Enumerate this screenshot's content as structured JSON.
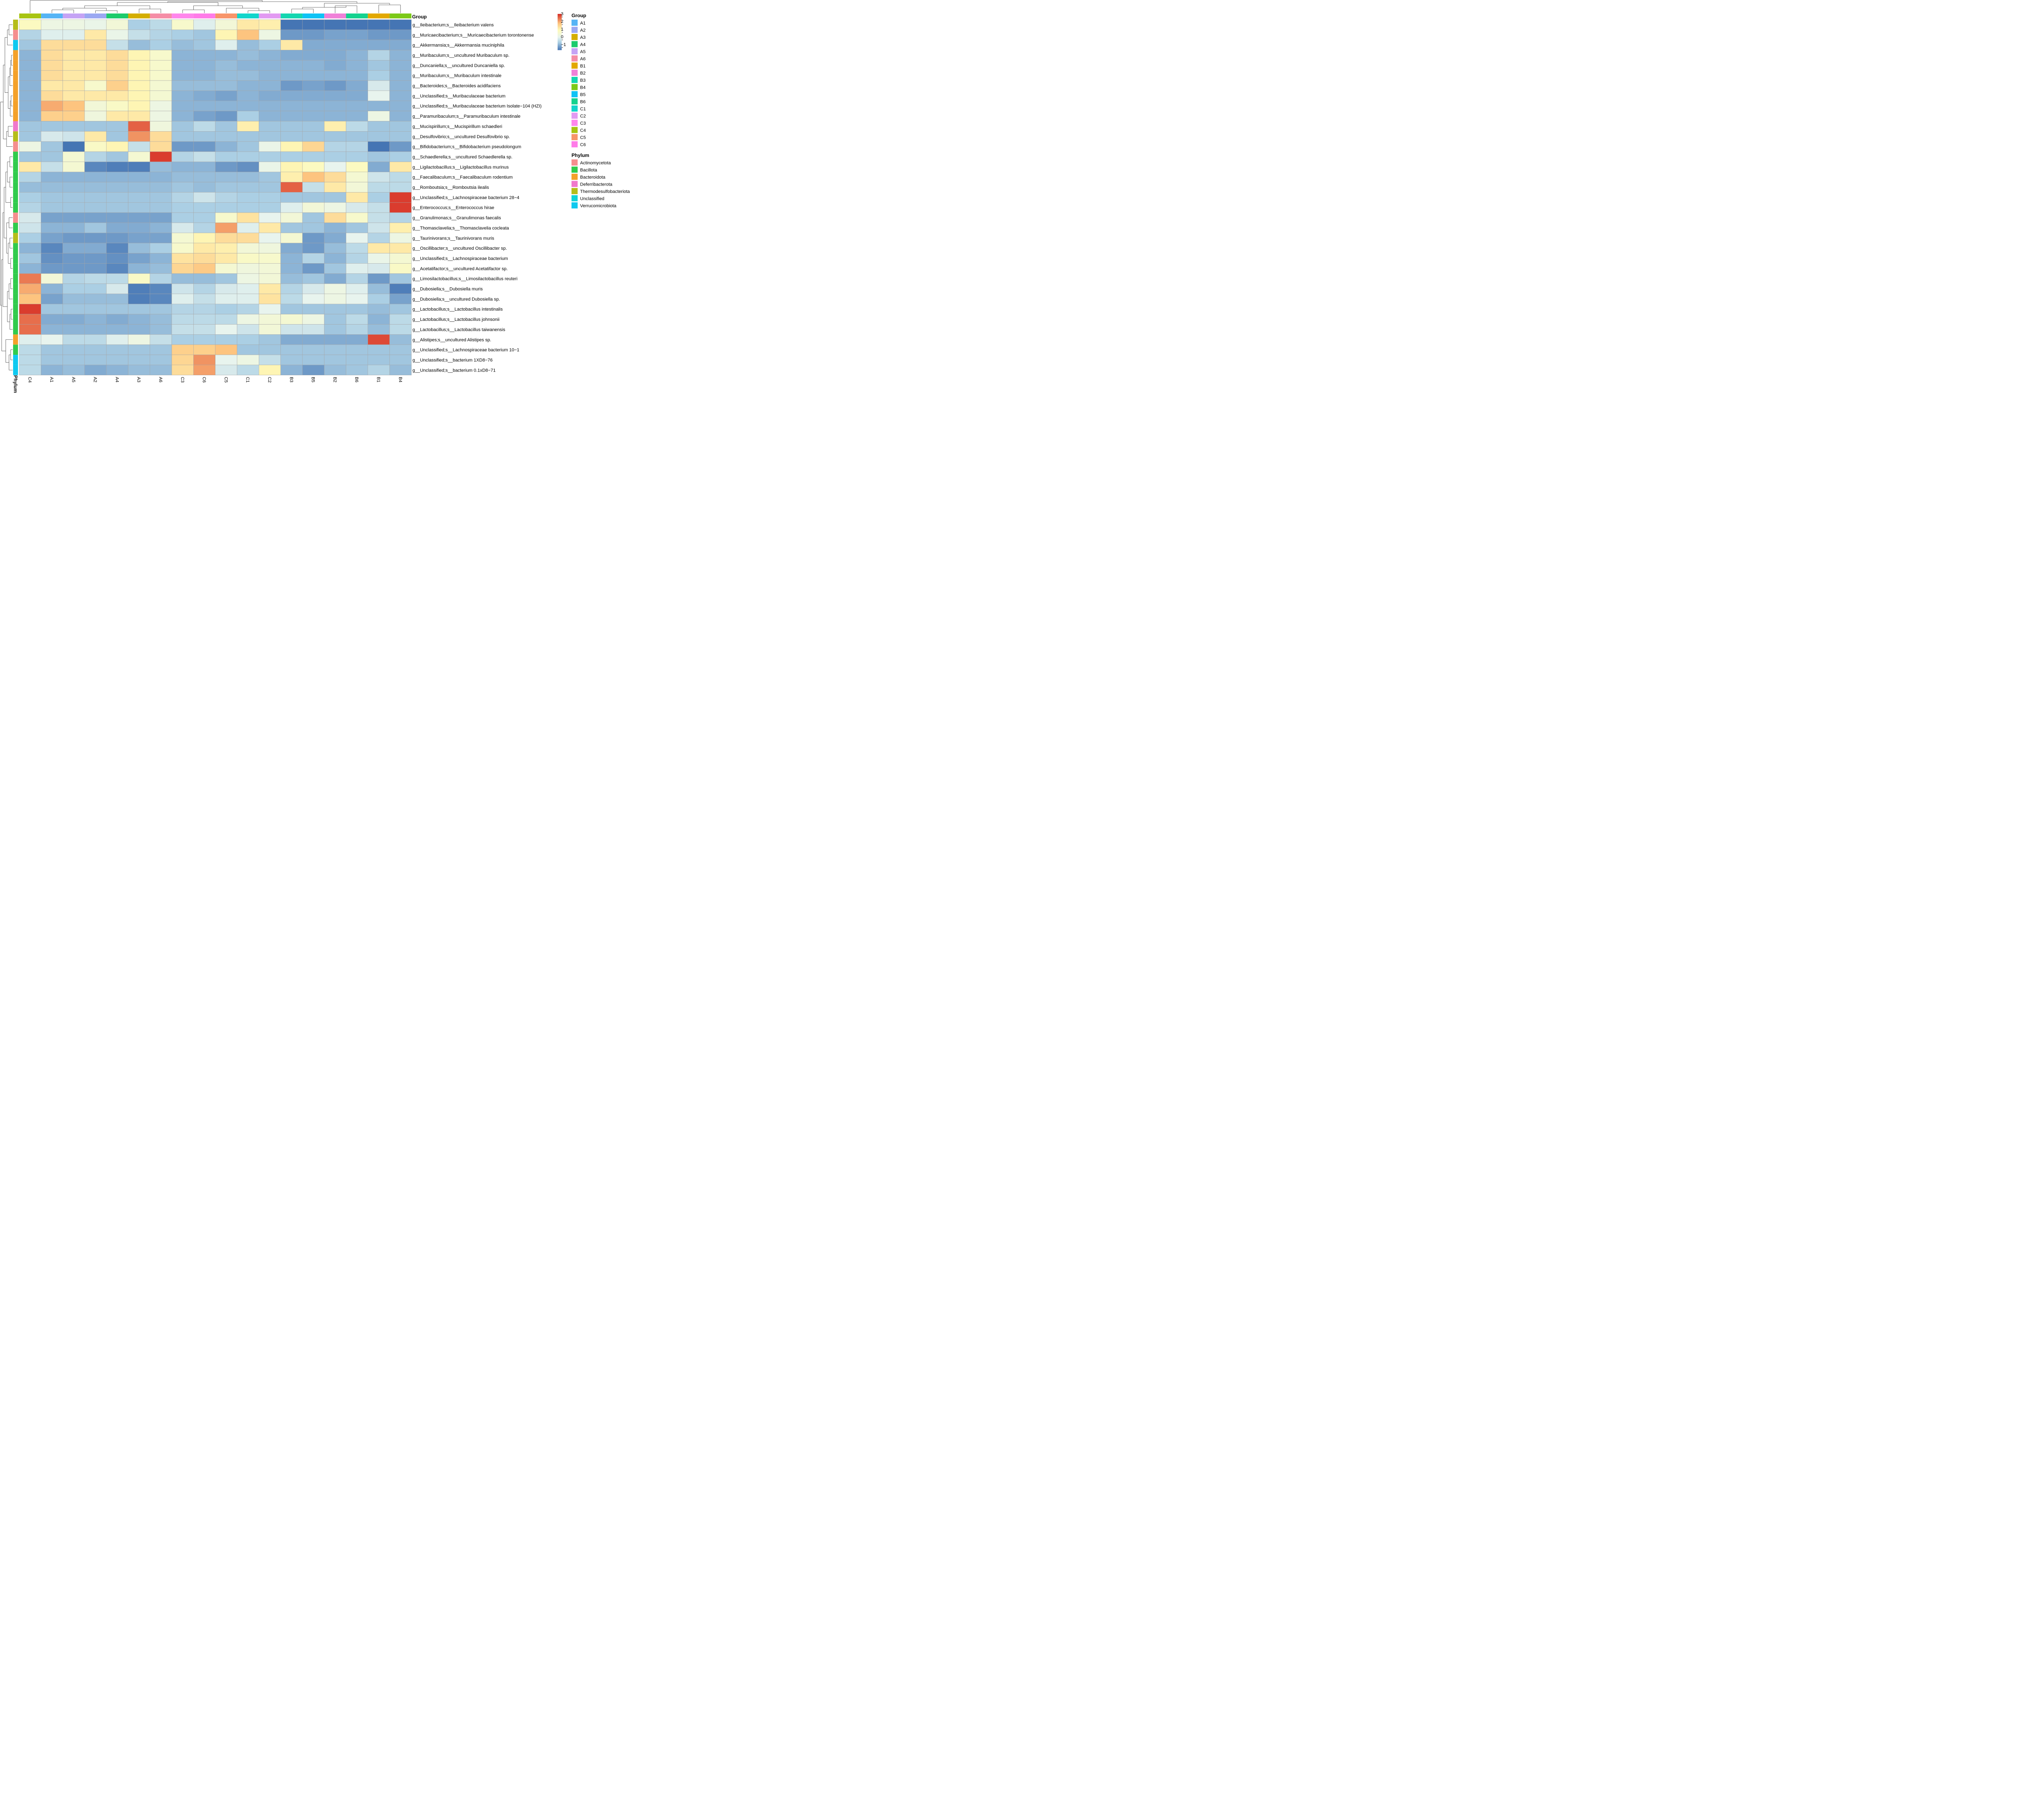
{
  "chart_data": {
    "type": "heatmap",
    "columns": [
      "C4",
      "A1",
      "A5",
      "A2",
      "A4",
      "A3",
      "A6",
      "C3",
      "C6",
      "C5",
      "C1",
      "C2",
      "B3",
      "B5",
      "B2",
      "B6",
      "B1",
      "B4"
    ],
    "rows": [
      "g__Ileibacterium;s__Ileibacterium valens",
      "g__Muricaecibacterium;s__Muricaecibacterium torontonense",
      "g__Akkermansia;s__Akkermansia muciniphila",
      "g__Muribaculum;s__uncultured Muribaculum sp.",
      "g__Duncaniella;s__uncultured Duncaniella sp.",
      "g__Muribaculum;s__Muribaculum intestinale",
      "g__Bacteroides;s__Bacteroides acidifaciens",
      "g__Unclassified;s__Muribaculaceae bacterium",
      "g__Unclassified;s__Muribaculaceae bacterium Isolate−104 (HZI)",
      "g__Paramuribaculum;s__Paramuribaculum intestinale",
      "g__Mucispirillum;s__Mucispirillum schaedleri",
      "g__Desulfovibrio;s__uncultured Desulfovibrio sp.",
      "g__Bifidobacterium;s__Bifidobacterium pseudolongum",
      "g__Schaedlerella;s__uncultured Schaedlerella sp.",
      "g__Ligilactobacillus;s__Ligilactobacillus murinus",
      "g__Faecalibaculum;s__Faecalibaculum rodentium",
      "g__Romboutsia;s__Romboutsia ilealis",
      "g__Unclassified;s__Lachnospiraceae bacterium 28−4",
      "g__Enterococcus;s__Enterococcus hirae",
      "g__Granulimonas;s__Granulimonas faecalis",
      "g__Thomasclavelia;s__Thomasclavelia cocleata",
      "g__Taurinivorans;s__Taurinivorans muris",
      "g__Oscillibacter;s__uncultured Oscillibacter sp.",
      "g__Unclassified;s__Lachnospiraceae bacterium",
      "g__Acetatifactor;s__uncultured Acetatifactor sp.",
      "g__Limosilactobacillus;s__Limosilactobacillus reuteri",
      "g__Dubosiella;s__Dubosiella muris",
      "g__Dubosiella;s__uncultured Dubosiella sp.",
      "g__Lactobacillus;s__Lactobacillus intestinalis",
      "g__Lactobacillus;s__Lactobacillus johnsonii",
      "g__Lactobacillus;s__Lactobacillus taiwanensis",
      "g__Alistipes;s__uncultured Alistipes sp.",
      "g__Unclassified;s__Lachnospiraceae bacterium 10−1",
      "g__Unclassified;s__bacterium 1XD8−76",
      "g__Unclassified;s__bacterium 0.1xD8−71"
    ],
    "values": [
      [
        1.2,
        0.6,
        0.6,
        0.5,
        0.8,
        -0.3,
        -0.1,
        1.0,
        0.3,
        0.8,
        1.6,
        1.5,
        -1.3,
        -1.3,
        -1.3,
        -1.3,
        -1.3,
        -1.3
      ],
      [
        -0.2,
        0.3,
        0.3,
        1.6,
        0.5,
        0.0,
        -0.2,
        -0.3,
        -0.4,
        1.4,
        2.2,
        0.6,
        -0.9,
        -0.9,
        -0.8,
        -0.8,
        -0.9,
        -0.9
      ],
      [
        -0.4,
        1.8,
        1.8,
        1.8,
        0.0,
        -0.5,
        -0.3,
        -0.5,
        -0.4,
        0.3,
        -0.5,
        -0.3,
        1.6,
        -0.7,
        -0.7,
        -0.7,
        -0.7,
        -0.7
      ],
      [
        -0.6,
        1.8,
        1.6,
        1.6,
        1.8,
        1.4,
        1.0,
        -0.6,
        -0.6,
        -0.6,
        -0.5,
        -0.6,
        -0.7,
        -0.7,
        -0.7,
        -0.6,
        -0.2,
        -0.6
      ],
      [
        -0.6,
        1.8,
        1.6,
        1.6,
        1.8,
        1.4,
        1.0,
        -0.6,
        -0.6,
        -0.5,
        -0.6,
        -0.6,
        -0.6,
        -0.6,
        -0.7,
        -0.6,
        -0.4,
        -0.6
      ],
      [
        -0.6,
        1.8,
        1.6,
        1.6,
        1.8,
        1.4,
        1.0,
        -0.6,
        -0.6,
        -0.5,
        -0.5,
        -0.6,
        -0.6,
        -0.6,
        -0.6,
        -0.6,
        -0.3,
        -0.6
      ],
      [
        -0.6,
        1.6,
        1.6,
        1.0,
        2.0,
        1.4,
        0.9,
        -0.5,
        -0.5,
        -0.5,
        -0.6,
        -0.6,
        -0.9,
        -0.8,
        -0.9,
        -0.7,
        0.2,
        -0.6
      ],
      [
        -0.6,
        1.8,
        1.6,
        1.6,
        1.6,
        1.4,
        0.9,
        -0.6,
        -0.7,
        -0.8,
        -0.6,
        -0.7,
        -0.7,
        -0.7,
        -0.7,
        -0.7,
        0.4,
        -0.6
      ],
      [
        -0.6,
        2.4,
        2.2,
        0.8,
        1.1,
        1.4,
        0.6,
        -0.6,
        -0.6,
        -0.6,
        -0.6,
        -0.6,
        -0.6,
        -0.6,
        -0.6,
        -0.6,
        -0.6,
        -0.6
      ],
      [
        -0.6,
        2.0,
        2.0,
        0.7,
        1.6,
        1.6,
        0.6,
        -0.6,
        -0.8,
        -0.9,
        -0.3,
        -0.6,
        -0.6,
        -0.6,
        -0.6,
        -0.6,
        0.6,
        -0.6
      ],
      [
        -0.4,
        -0.4,
        -0.4,
        -0.4,
        -0.4,
        3.0,
        0.7,
        -0.4,
        -0.1,
        -0.4,
        1.5,
        -0.4,
        -0.4,
        -0.4,
        1.5,
        -0.1,
        -0.4,
        -0.4
      ],
      [
        -0.4,
        0.2,
        0.1,
        1.6,
        -0.4,
        2.6,
        1.8,
        -0.4,
        -0.4,
        -0.4,
        -0.4,
        -0.4,
        -0.4,
        -0.4,
        -0.4,
        -0.4,
        -0.4,
        -0.4
      ],
      [
        0.6,
        -0.4,
        -1.3,
        1.1,
        1.4,
        0.0,
        1.8,
        -0.9,
        -0.9,
        -0.6,
        -0.4,
        0.5,
        1.4,
        1.9,
        -0.2,
        -0.2,
        -1.3,
        -0.9
      ],
      [
        -0.4,
        -0.4,
        0.9,
        -0.2,
        -0.4,
        0.9,
        3.3,
        -0.2,
        0.0,
        -0.3,
        -0.3,
        -0.3,
        -0.3,
        -0.3,
        -0.3,
        -0.3,
        -0.4,
        -0.3
      ],
      [
        1.6,
        0.0,
        0.9,
        -1.1,
        -1.2,
        -1.2,
        -0.5,
        -0.6,
        -0.6,
        -0.9,
        -1.0,
        0.5,
        1.4,
        1.2,
        0.4,
        1.2,
        -0.7,
        1.6
      ],
      [
        -0.2,
        -0.6,
        -0.6,
        -0.6,
        -0.6,
        -0.6,
        -0.6,
        -0.5,
        -0.5,
        -0.5,
        -0.5,
        -0.4,
        1.5,
        2.2,
        1.8,
        0.9,
        0.1,
        -0.1
      ],
      [
        -0.5,
        -0.5,
        -0.5,
        -0.5,
        -0.5,
        -0.5,
        -0.5,
        -0.4,
        -0.5,
        -0.4,
        -0.4,
        -0.4,
        3.0,
        0.0,
        1.6,
        0.8,
        -0.1,
        -0.1
      ],
      [
        -0.3,
        -0.4,
        -0.4,
        -0.4,
        -0.4,
        -0.4,
        -0.4,
        -0.2,
        0.1,
        -0.2,
        -0.3,
        -0.3,
        -0.4,
        -0.4,
        -0.4,
        1.6,
        -0.3,
        3.3
      ],
      [
        -0.2,
        -0.4,
        -0.4,
        -0.4,
        -0.4,
        -0.4,
        -0.4,
        -0.3,
        -0.3,
        -0.3,
        -0.3,
        -0.3,
        0.3,
        0.8,
        0.6,
        0.2,
        0.0,
        3.3
      ],
      [
        0.2,
        -0.8,
        -0.8,
        -0.8,
        -0.8,
        -0.8,
        -0.8,
        -0.3,
        -0.3,
        1.0,
        1.7,
        0.4,
        0.8,
        -0.4,
        1.8,
        1.0,
        0.0,
        -0.2
      ],
      [
        0.1,
        -0.6,
        -0.6,
        -0.4,
        -0.7,
        -0.7,
        -0.6,
        0.2,
        -0.2,
        2.5,
        0.3,
        1.6,
        -0.4,
        -0.4,
        -0.6,
        -0.4,
        0.1,
        1.5
      ],
      [
        -0.3,
        -0.8,
        -0.9,
        -0.9,
        -0.9,
        -0.8,
        -0.8,
        0.9,
        1.4,
        1.8,
        1.8,
        0.4,
        0.9,
        -0.9,
        -0.7,
        0.4,
        -0.2,
        0.6
      ],
      [
        -0.6,
        -1.1,
        -0.7,
        -0.7,
        -1.1,
        -0.5,
        -0.3,
        1.0,
        1.6,
        1.5,
        0.8,
        0.7,
        -0.7,
        -0.9,
        -0.5,
        -0.1,
        1.6,
        1.6
      ],
      [
        -0.4,
        -1.0,
        -0.9,
        -0.9,
        -1.0,
        -0.8,
        -0.6,
        1.7,
        1.8,
        1.6,
        1.1,
        1.0,
        -0.6,
        -0.2,
        -0.6,
        -0.2,
        0.5,
        0.9
      ],
      [
        -0.6,
        -0.9,
        -0.9,
        -0.9,
        -1.1,
        -0.6,
        -0.5,
        1.9,
        2.1,
        0.9,
        0.7,
        0.8,
        -0.6,
        -0.9,
        -0.4,
        0.3,
        0.2,
        1.1
      ],
      [
        2.8,
        0.8,
        -0.2,
        -0.1,
        -0.1,
        1.1,
        -0.2,
        -0.5,
        -0.5,
        -0.4,
        0.6,
        0.8,
        -0.5,
        -0.4,
        -0.7,
        -0.2,
        -0.9,
        -0.4
      ],
      [
        2.4,
        -0.6,
        -0.3,
        -0.3,
        0.2,
        -1.2,
        -1.1,
        0.1,
        -0.2,
        0.2,
        0.3,
        1.6,
        -0.2,
        0.2,
        0.6,
        0.3,
        -0.5,
        -1.2
      ],
      [
        2.2,
        -0.8,
        -0.5,
        -0.5,
        -0.5,
        -1.2,
        -1.1,
        0.3,
        0.0,
        0.3,
        0.3,
        1.7,
        -0.1,
        0.4,
        0.6,
        0.4,
        -0.3,
        -0.8
      ],
      [
        3.3,
        -0.4,
        -0.4,
        -0.4,
        -0.4,
        -0.4,
        -0.4,
        -0.2,
        -0.2,
        -0.3,
        -0.2,
        0.4,
        -0.4,
        -0.4,
        -0.4,
        -0.4,
        -0.5,
        -0.4
      ],
      [
        2.9,
        -0.7,
        -0.7,
        -0.6,
        -0.7,
        -0.6,
        -0.5,
        -0.1,
        -0.1,
        -0.1,
        0.6,
        0.8,
        0.9,
        0.6,
        -0.4,
        -0.1,
        -0.6,
        -0.1
      ],
      [
        2.9,
        -0.6,
        -0.6,
        -0.6,
        -0.6,
        -0.6,
        -0.5,
        0.0,
        0.0,
        0.4,
        0.1,
        0.8,
        0.1,
        0.1,
        -0.4,
        -0.2,
        -0.5,
        -0.1
      ],
      [
        0.3,
        0.4,
        -0.1,
        -0.1,
        0.3,
        0.6,
        0.0,
        -0.3,
        -0.3,
        -0.3,
        -0.3,
        -0.4,
        -0.7,
        -0.7,
        -0.7,
        -0.7,
        3.2,
        -0.5
      ],
      [
        -0.1,
        -0.4,
        -0.4,
        -0.4,
        -0.4,
        -0.4,
        -0.4,
        2.0,
        2.0,
        2.2,
        -0.4,
        -0.4,
        -0.4,
        -0.4,
        -0.4,
        -0.4,
        -0.4,
        -0.4
      ],
      [
        -0.1,
        -0.4,
        -0.4,
        -0.4,
        -0.4,
        -0.4,
        -0.4,
        1.9,
        2.6,
        0.4,
        0.6,
        0.0,
        -0.4,
        -0.4,
        -0.4,
        -0.4,
        -0.4,
        -0.4
      ],
      [
        -0.1,
        -0.6,
        -0.5,
        -0.7,
        -0.6,
        -0.5,
        -0.5,
        1.8,
        2.5,
        0.2,
        -0.1,
        1.4,
        -0.6,
        -0.9,
        -0.5,
        -0.4,
        -0.2,
        -0.5
      ]
    ],
    "col_group": [
      "C4",
      "A1",
      "A5",
      "A2",
      "A4",
      "A3",
      "A6",
      "C3",
      "C6",
      "C5",
      "C1",
      "C2",
      "B3",
      "B5",
      "B2",
      "B6",
      "B1",
      "B4"
    ],
    "row_phylum": [
      "Thermodesulfobacteriota",
      "Actinomycetota",
      "Verrucomicrobiota",
      "Bacteroidota",
      "Bacteroidota",
      "Bacteroidota",
      "Bacteroidota",
      "Bacteroidota",
      "Bacteroidota",
      "Bacteroidota",
      "Deferribacterota",
      "Thermodesulfobacteriota",
      "Actinomycetota",
      "Bacillota",
      "Bacillota",
      "Bacillota",
      "Bacillota",
      "Bacillota",
      "Bacillota",
      "Actinomycetota",
      "Bacillota",
      "Thermodesulfobacteriota",
      "Bacillota",
      "Bacillota",
      "Bacillota",
      "Bacillota",
      "Bacillota",
      "Bacillota",
      "Bacillota",
      "Bacillota",
      "Bacillota",
      "Bacteroidota",
      "Bacillota",
      "Verrucomicrobiota",
      "Verrucomicrobiota"
    ],
    "group_annotation_title": "Group",
    "phylum_annotation_title": "Phylum",
    "group_legend": [
      {
        "label": "A1",
        "color": "#56B4F5"
      },
      {
        "label": "A2",
        "color": "#9BA8F2"
      },
      {
        "label": "A3",
        "color": "#D4AE00"
      },
      {
        "label": "A4",
        "color": "#1CCB6C"
      },
      {
        "label": "A5",
        "color": "#C5A3F5"
      },
      {
        "label": "A6",
        "color": "#F58DA6"
      },
      {
        "label": "B1",
        "color": "#E2A800"
      },
      {
        "label": "B2",
        "color": "#F081D8"
      },
      {
        "label": "B3",
        "color": "#14D6B0"
      },
      {
        "label": "B4",
        "color": "#7CC918"
      },
      {
        "label": "B5",
        "color": "#0FC3F5"
      },
      {
        "label": "B6",
        "color": "#14D28F"
      },
      {
        "label": "C1",
        "color": "#12D5CB"
      },
      {
        "label": "C2",
        "color": "#E29AF2"
      },
      {
        "label": "C3",
        "color": "#FF86EC"
      },
      {
        "label": "C4",
        "color": "#A8C412"
      },
      {
        "label": "C5",
        "color": "#F7956A"
      },
      {
        "label": "C6",
        "color": "#FF7CE8"
      }
    ],
    "phylum_legend": [
      {
        "label": "Actinomycetota",
        "color": "#F58E8E"
      },
      {
        "label": "Bacillota",
        "color": "#31CB4C"
      },
      {
        "label": "Bacteroidota",
        "color": "#F4A12A"
      },
      {
        "label": "Deferribacterota",
        "color": "#F078CC"
      },
      {
        "label": "Thermodesulfobacteriota",
        "color": "#B5BD1A"
      },
      {
        "label": "Unclassified",
        "color": "#0FD3D7"
      },
      {
        "label": "Verrucomicrobiota",
        "color": "#0FC9F0"
      }
    ],
    "scale": {
      "min": -1.3,
      "max": 3.4,
      "ticks": [
        -1,
        0,
        1,
        2,
        3
      ],
      "tick_labels": [
        "−1",
        "0",
        "1",
        "2",
        "3"
      ],
      "colors": [
        {
          "v": -1.3,
          "c": "#4575B4"
        },
        {
          "v": -0.3,
          "c": "#ABCFE4"
        },
        {
          "v": 0.4,
          "c": "#E8F4EE"
        },
        {
          "v": 1.3,
          "c": "#FEFBBB"
        },
        {
          "v": 2.2,
          "c": "#FDC47F"
        },
        {
          "v": 3.4,
          "c": "#D73027"
        }
      ]
    }
  }
}
